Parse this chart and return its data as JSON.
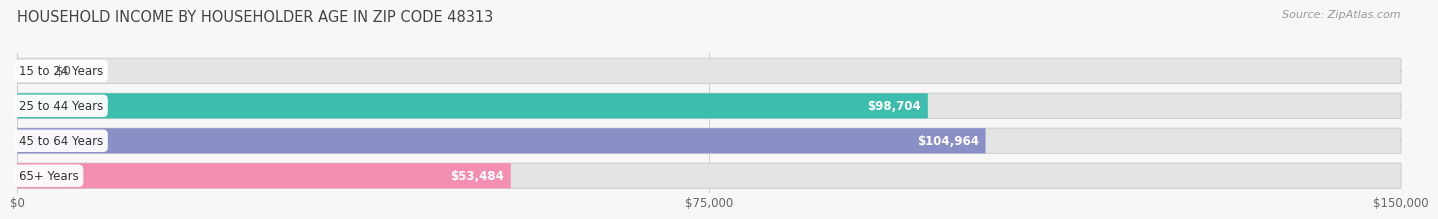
{
  "title": "HOUSEHOLD INCOME BY HOUSEHOLDER AGE IN ZIP CODE 48313",
  "source": "Source: ZipAtlas.com",
  "categories": [
    "15 to 24 Years",
    "25 to 44 Years",
    "45 to 64 Years",
    "65+ Years"
  ],
  "values": [
    0,
    98704,
    104964,
    53484
  ],
  "bar_colors": [
    "#c9aed6",
    "#3dbdad",
    "#8b8fc8",
    "#f48fb1"
  ],
  "value_labels": [
    "$0",
    "$98,704",
    "$104,964",
    "$53,484"
  ],
  "xlim": [
    0,
    150000
  ],
  "xticks": [
    0,
    75000,
    150000
  ],
  "xtick_labels": [
    "$0",
    "$75,000",
    "$150,000"
  ],
  "background_color": "#f7f7f7",
  "bar_bg_color": "#e4e4e4",
  "bar_bg_border_color": "#d0d0d0",
  "title_fontsize": 10.5,
  "source_fontsize": 8,
  "bar_height": 0.72,
  "figsize": [
    14.06,
    2.33
  ]
}
